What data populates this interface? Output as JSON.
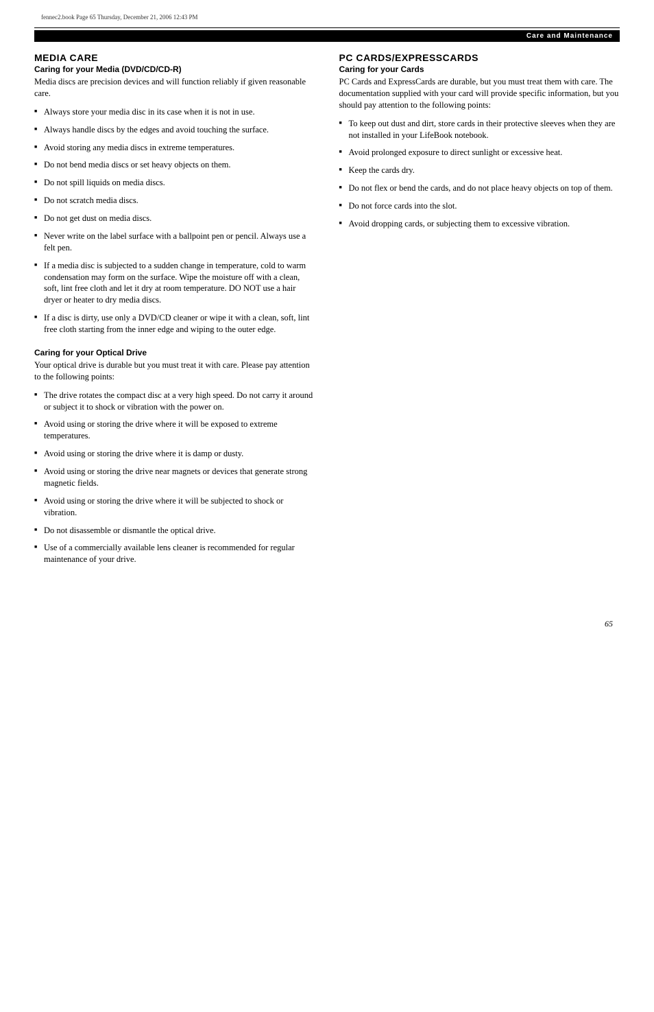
{
  "print_mark": "fennec2.book  Page 65  Thursday, December 21, 2006  12:43 PM",
  "header_bar": "Care and Maintenance",
  "left_column": {
    "section1": {
      "title": "MEDIA CARE",
      "subtitle": "Caring for your Media (DVD/CD/CD-R)",
      "intro": "Media discs are precision devices and will function reliably if given reasonable care.",
      "items": [
        "Always store your media disc in its case when it is not in use.",
        "Always handle discs by the edges and avoid touching the surface.",
        "Avoid storing any media discs in extreme temperatures.",
        "Do not bend media discs or set heavy objects on them.",
        "Do not spill liquids on media discs.",
        "Do not scratch media discs.",
        "Do not get dust on media discs.",
        "Never write on the label surface with a ballpoint pen or pencil. Always use a felt pen.",
        "If a media disc is subjected to a sudden change in temperature, cold to warm condensation may form on the surface. Wipe the moisture off with a clean, soft, lint free cloth and let it dry at room temperature. DO NOT use a hair dryer or heater to dry media discs.",
        "If a disc is dirty, use only a DVD/CD cleaner or wipe it with a clean, soft, lint free cloth starting from the inner edge and wiping to the outer edge."
      ]
    },
    "section2": {
      "subtitle": "Caring for your Optical Drive",
      "intro": "Your optical drive is durable but you must treat it with care. Please pay attention to the following points:",
      "items": [
        "The drive rotates the compact disc at a very high speed. Do not carry it around or subject it to shock or vibration with the power on.",
        "Avoid using or storing the drive where it will be exposed to extreme temperatures.",
        "Avoid using or storing the drive where it is damp or dusty.",
        "Avoid using or storing the drive near magnets or devices that generate strong magnetic fields.",
        "Avoid using or storing the drive where it will be subjected to shock or vibration.",
        "Do not disassemble or dismantle the optical drive.",
        "Use of a commercially available lens cleaner is recommended for regular maintenance of your drive."
      ]
    }
  },
  "right_column": {
    "section1": {
      "title": "PC CARDS/EXPRESSCARDS",
      "subtitle": "Caring for your Cards",
      "intro": "PC Cards and ExpressCards are durable, but you must treat them with care. The documentation supplied with your card will provide specific information, but you should pay attention to the following points:",
      "items": [
        "To keep out dust and dirt, store cards in their protective sleeves when they are not installed in your LifeBook notebook.",
        "Avoid prolonged exposure to direct sunlight or excessive heat.",
        "Keep the cards dry.",
        "Do not flex or bend the cards, and do not place heavy objects on top of them.",
        "Do not force cards into the slot.",
        "Avoid dropping cards, or subjecting them to excessive vibration."
      ]
    }
  },
  "page_number": "65"
}
